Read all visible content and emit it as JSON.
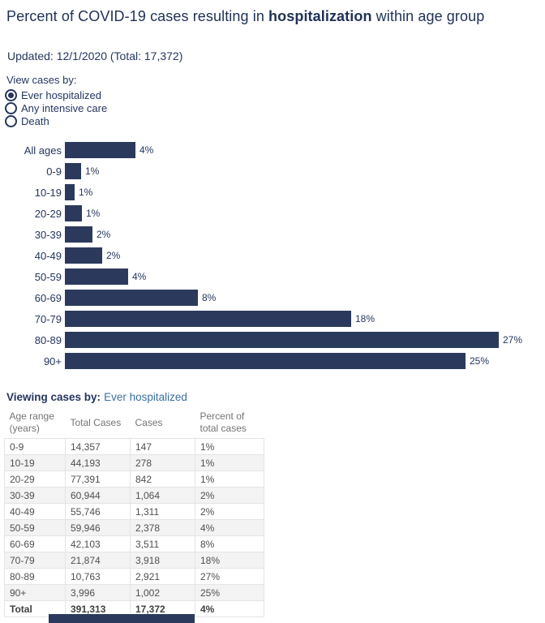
{
  "title": {
    "prefix": "Percent of COVID-19 cases resulting in ",
    "highlight": "hospitalization",
    "suffix": " within age group"
  },
  "updated_line": "Updated: 12/1/2020 (Total: 17,372)",
  "controls": {
    "label": "View cases by:",
    "options": [
      {
        "label": "Ever hospitalized",
        "selected": true
      },
      {
        "label": "Any intensive care",
        "selected": false
      },
      {
        "label": "Death",
        "selected": false
      }
    ]
  },
  "chart_data": {
    "type": "bar",
    "orientation": "horizontal",
    "title": "Percent of COVID-19 cases resulting in hospitalization within age group",
    "categories": [
      "All ages",
      "0-9",
      "10-19",
      "20-29",
      "30-39",
      "40-49",
      "50-59",
      "60-69",
      "70-79",
      "80-89",
      "90+"
    ],
    "value_labels": [
      "4%",
      "1%",
      "1%",
      "1%",
      "2%",
      "2%",
      "4%",
      "8%",
      "18%",
      "27%",
      "25%"
    ],
    "values_exact_pct": [
      4.44,
      1.02,
      0.63,
      1.09,
      1.75,
      2.35,
      3.97,
      8.34,
      17.91,
      27.14,
      25.08
    ],
    "xlim": [
      0,
      30
    ],
    "grid": false,
    "legend": "none",
    "bar_color": "#2b3a5c"
  },
  "viewing_line": {
    "label": "Viewing cases by:",
    "value": "Ever hospitalized"
  },
  "table": {
    "columns": [
      "Age range (years)",
      "Total Cases",
      "Cases",
      "Percent of total cases"
    ],
    "rows": [
      [
        "0-9",
        "14,357",
        "147",
        "1%"
      ],
      [
        "10-19",
        "44,193",
        "278",
        "1%"
      ],
      [
        "20-29",
        "77,391",
        "842",
        "1%"
      ],
      [
        "30-39",
        "60,944",
        "1,064",
        "2%"
      ],
      [
        "40-49",
        "55,746",
        "1,311",
        "2%"
      ],
      [
        "50-59",
        "59,946",
        "2,378",
        "4%"
      ],
      [
        "60-69",
        "42,103",
        "3,511",
        "8%"
      ],
      [
        "70-79",
        "21,874",
        "3,918",
        "18%"
      ],
      [
        "80-89",
        "10,763",
        "2,921",
        "27%"
      ],
      [
        "90+",
        "3,996",
        "1,002",
        "25%"
      ]
    ],
    "total_row": [
      "Total",
      "391,313",
      "17,372",
      "4%"
    ]
  },
  "colors": {
    "text_navy": "#24365f",
    "title_navy": "#1f3156",
    "bar_fill": "#2b3a5c",
    "link_blue": "#3a6fa5",
    "header_gray": "#747474",
    "cell_gray": "#4f4f4f",
    "row_stripe": "#f3f3f3",
    "table_border": "#e4e4e4",
    "scroll_thumb": "#2b3a5c"
  }
}
